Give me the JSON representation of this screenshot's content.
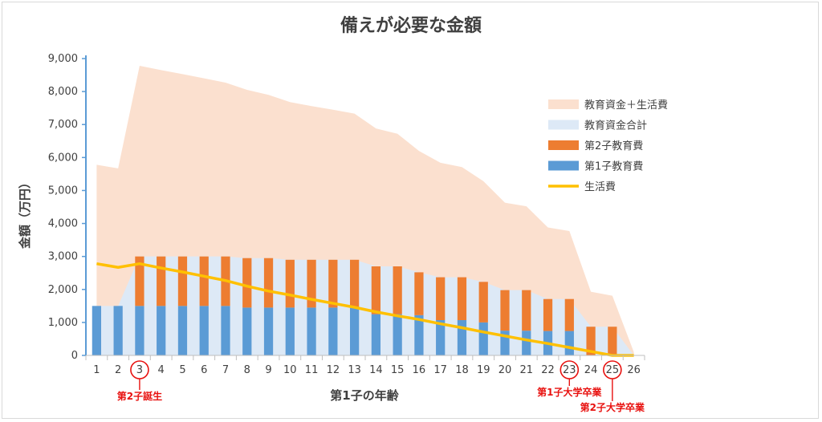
{
  "chart_data": {
    "type": "bar",
    "title": "備えが必要な金額",
    "xlabel": "第1子の年齢",
    "ylabel": "金額（万円）",
    "ylim": [
      0,
      9000
    ],
    "yticks": [
      0,
      1000,
      2000,
      3000,
      4000,
      5000,
      6000,
      7000,
      8000,
      9000
    ],
    "ytick_labels": [
      "0",
      "1,000",
      "2,000",
      "3,000",
      "4,000",
      "5,000",
      "6,000",
      "7,000",
      "8,000",
      "9,000"
    ],
    "categories": [
      "1",
      "2",
      "3",
      "4",
      "5",
      "6",
      "7",
      "8",
      "9",
      "10",
      "11",
      "12",
      "13",
      "14",
      "15",
      "16",
      "17",
      "18",
      "19",
      "20",
      "21",
      "22",
      "23",
      "24",
      "25",
      "26"
    ],
    "series": [
      {
        "name": "教育資金＋生活費",
        "kind": "area",
        "color": "#fbe0cf",
        "values": [
          5780,
          5670,
          8780,
          8650,
          8530,
          8400,
          8270,
          8050,
          7900,
          7680,
          7560,
          7450,
          7330,
          6880,
          6720,
          6200,
          5840,
          5710,
          5280,
          4630,
          4520,
          3880,
          3770,
          1930,
          1810,
          100
        ]
      },
      {
        "name": "教育資金合計",
        "kind": "area",
        "color": "#dde9f6",
        "values": [
          1500,
          1500,
          3000,
          3000,
          3000,
          3000,
          3000,
          2950,
          2950,
          2900,
          2900,
          2900,
          2900,
          2700,
          2700,
          2520,
          2370,
          2370,
          2230,
          1980,
          1980,
          1710,
          1710,
          870,
          870,
          0
        ]
      },
      {
        "name": "第2子教育費",
        "kind": "bar_stack",
        "color": "#ed7d31",
        "values": [
          0,
          0,
          1500,
          1500,
          1500,
          1500,
          1500,
          1500,
          1500,
          1450,
          1450,
          1450,
          1450,
          1450,
          1450,
          1300,
          1300,
          1300,
          1230,
          1230,
          1230,
          970,
          970,
          870,
          870,
          0
        ]
      },
      {
        "name": "第1子教育費",
        "kind": "bar",
        "color": "#5b9bd5",
        "values": [
          1500,
          1500,
          1500,
          1500,
          1500,
          1500,
          1500,
          1450,
          1450,
          1450,
          1450,
          1450,
          1450,
          1250,
          1250,
          1220,
          1070,
          1070,
          1000,
          750,
          750,
          740,
          740,
          0,
          0,
          0
        ]
      },
      {
        "name": "生活費",
        "kind": "line",
        "color": "#ffc000",
        "values": [
          2780,
          2670,
          2780,
          2650,
          2530,
          2400,
          2270,
          2100,
          1950,
          1830,
          1700,
          1580,
          1460,
          1320,
          1200,
          1090,
          960,
          840,
          710,
          590,
          470,
          360,
          240,
          120,
          0,
          0
        ]
      }
    ],
    "annotations": [
      {
        "label": "第2子誕生",
        "category": "3"
      },
      {
        "label": "第1子大学卒業",
        "category": "23"
      },
      {
        "label": "第2子大学卒業",
        "category": "25"
      }
    ],
    "legend_position": "right",
    "grid": false
  }
}
